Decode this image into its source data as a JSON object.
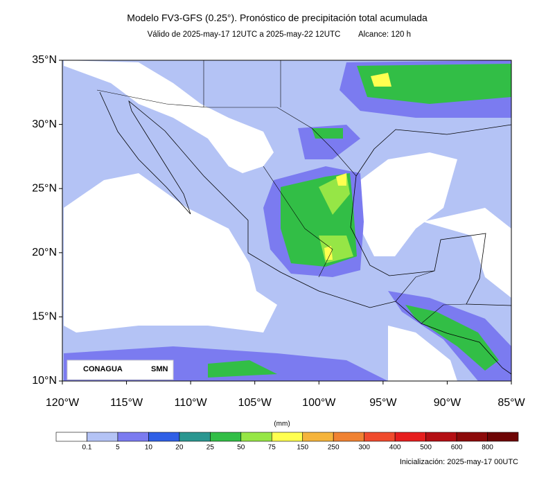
{
  "header": {
    "title": "Modelo FV3-GFS (0.25°). Pronóstico de precipitación total acumulada",
    "subtitle": "Válido de 2025-may-17 12UTC a 2025-may-22 12UTC",
    "range": "Alcance: 120 h"
  },
  "map": {
    "lat_labels": [
      "35°N",
      "30°N",
      "25°N",
      "20°N",
      "15°N",
      "10°N"
    ],
    "lon_labels": [
      "120°W",
      "115°W",
      "110°W",
      "105°W",
      "100°W",
      "95°W",
      "90°W",
      "85°W"
    ],
    "logos": [
      "CONAGUA",
      "SMN"
    ]
  },
  "colorbar": {
    "unit": "(mm)",
    "labels": [
      "0.1",
      "5",
      "10",
      "20",
      "25",
      "50",
      "75",
      "150",
      "250",
      "300",
      "400",
      "500",
      "600",
      "800"
    ],
    "colors": [
      "#ffffff",
      "#b4c3f5",
      "#7b7bf0",
      "#2f5fe6",
      "#2a9690",
      "#32be46",
      "#96e646",
      "#ffff50",
      "#f5b43c",
      "#f08232",
      "#f04b2d",
      "#e61e1e",
      "#b40f14",
      "#8c0a0a",
      "#6e0505"
    ]
  },
  "footer": {
    "init": "Inicialización: 2025-may-17 00UTC"
  }
}
